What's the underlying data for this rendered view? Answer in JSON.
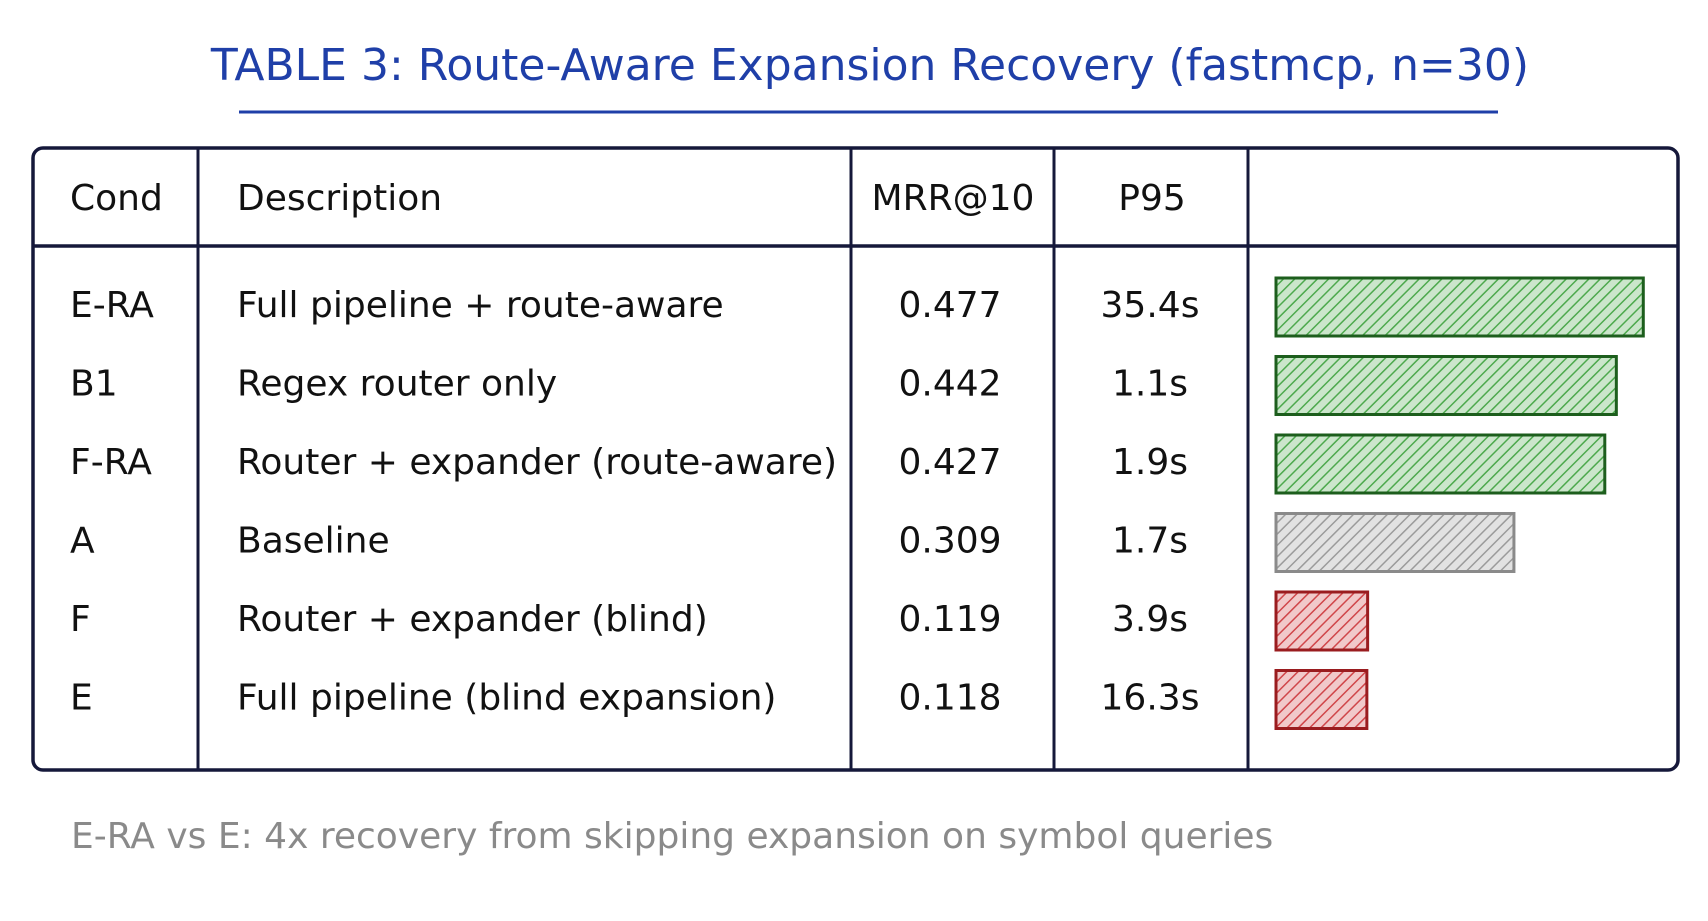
{
  "header": {
    "title": "TABLE 3: Route-Aware Expansion Recovery (fastmcp, n=30)"
  },
  "table": {
    "columns": [
      "Cond",
      "Description",
      "MRR@10",
      "P95"
    ],
    "rows": [
      {
        "cond": "E-RA",
        "description": "Full pipeline + route-aware",
        "mrr": 0.477,
        "p95": "35.4s",
        "color": "#2e9a2e"
      },
      {
        "cond": "B1",
        "description": "Regex router only",
        "mrr": 0.442,
        "p95": "1.1s",
        "color": "#2e9a2e"
      },
      {
        "cond": "F-RA",
        "description": "Router + expander (route-aware)",
        "mrr": 0.427,
        "p95": "1.9s",
        "color": "#2e9a2e"
      },
      {
        "cond": "A",
        "description": "Baseline",
        "mrr": 0.309,
        "p95": "1.7s",
        "color": "#8a8a8a"
      },
      {
        "cond": "F",
        "description": "Router + expander (blind)",
        "mrr": 0.119,
        "p95": "3.9s",
        "color": "#c8262a"
      },
      {
        "cond": "E",
        "description": "Full pipeline (blind expansion)",
        "mrr": 0.118,
        "p95": "16.3s",
        "color": "#c8262a"
      }
    ]
  },
  "footnote": "E-RA vs E: 4x recovery from skipping expansion on symbol queries"
}
